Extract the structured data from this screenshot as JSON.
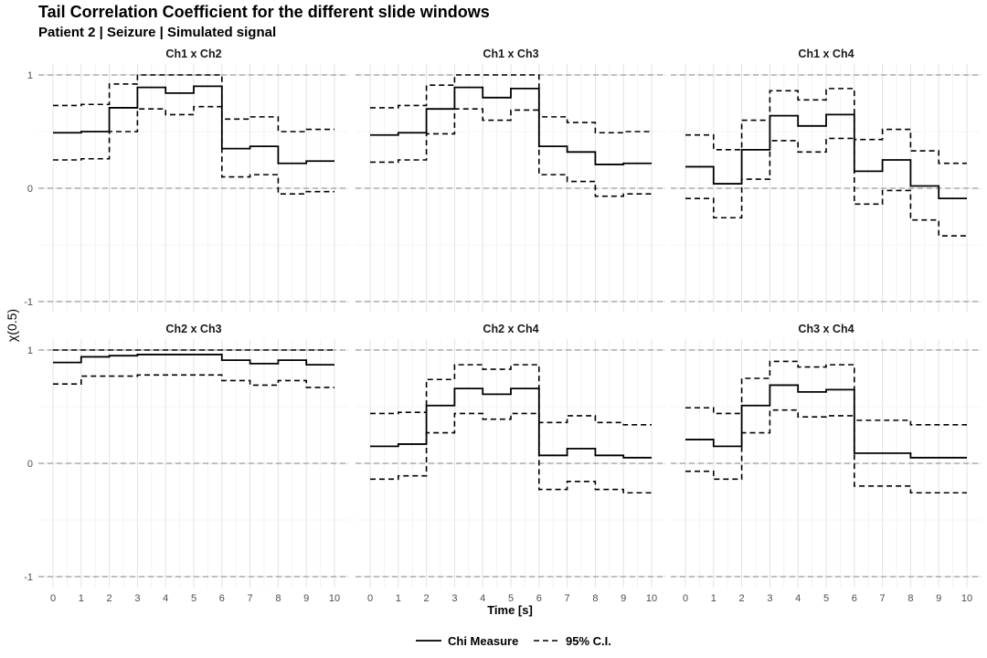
{
  "chart_data": {
    "type": "line",
    "step": "hv",
    "title": "Tail Correlation Coefficient for the different slide windows",
    "subtitle": "Patient 2 | Seizure | Simulated signal",
    "xlabel": "Time [s]",
    "ylabel": "χ(0.5)",
    "xlim": [
      0,
      10
    ],
    "ylim": [
      -1,
      1
    ],
    "x_ticks": [
      0,
      1,
      2,
      3,
      4,
      5,
      6,
      7,
      8,
      9,
      10
    ],
    "x_tick_labels": [
      "0",
      "1",
      "2",
      "3",
      "4",
      "5",
      "6",
      "7",
      "8",
      "9",
      "10"
    ],
    "y_ticks": [
      -1,
      0,
      1
    ],
    "y_tick_labels": [
      "-1",
      "0",
      "1"
    ],
    "reference_lines": [
      -1,
      0,
      1
    ],
    "grid": true,
    "legend": {
      "position": "bottom",
      "entries": [
        {
          "label": "Chi Measure",
          "style": "solid"
        },
        {
          "label": "95% C.I.",
          "style": "dashed"
        }
      ]
    },
    "x": [
      0,
      1,
      2,
      3,
      4,
      5,
      6,
      7,
      8,
      9,
      10
    ],
    "panels": [
      {
        "label": "Ch1 x Ch2",
        "chi": [
          0.49,
          0.5,
          0.71,
          0.89,
          0.84,
          0.9,
          0.35,
          0.37,
          0.22,
          0.24,
          0.24
        ],
        "lower": [
          0.25,
          0.26,
          0.5,
          0.7,
          0.65,
          0.72,
          0.1,
          0.12,
          -0.05,
          -0.03,
          -0.03
        ],
        "upper": [
          0.73,
          0.74,
          0.92,
          1.0,
          1.0,
          1.0,
          0.61,
          0.63,
          0.5,
          0.52,
          0.52
        ]
      },
      {
        "label": "Ch1 x Ch3",
        "chi": [
          0.47,
          0.49,
          0.7,
          0.89,
          0.8,
          0.88,
          0.37,
          0.32,
          0.21,
          0.22,
          0.22
        ],
        "lower": [
          0.23,
          0.25,
          0.48,
          0.7,
          0.6,
          0.69,
          0.12,
          0.06,
          -0.07,
          -0.05,
          -0.05
        ],
        "upper": [
          0.71,
          0.73,
          0.91,
          1.0,
          1.0,
          1.0,
          0.63,
          0.58,
          0.49,
          0.5,
          0.5
        ]
      },
      {
        "label": "Ch1 x Ch4",
        "chi": [
          0.19,
          0.04,
          0.34,
          0.64,
          0.55,
          0.65,
          0.15,
          0.25,
          0.02,
          -0.09,
          -0.09
        ],
        "lower": [
          -0.09,
          -0.26,
          0.08,
          0.42,
          0.32,
          0.44,
          -0.14,
          -0.02,
          -0.28,
          -0.42,
          -0.42
        ],
        "upper": [
          0.47,
          0.34,
          0.6,
          0.86,
          0.78,
          0.88,
          0.43,
          0.52,
          0.33,
          0.22,
          0.22
        ]
      },
      {
        "label": "Ch2 x Ch3",
        "chi": [
          0.89,
          0.94,
          0.95,
          0.96,
          0.96,
          0.96,
          0.91,
          0.88,
          0.91,
          0.87,
          0.87
        ],
        "lower": [
          0.7,
          0.77,
          0.77,
          0.78,
          0.78,
          0.78,
          0.73,
          0.69,
          0.73,
          0.67,
          0.67
        ],
        "upper": [
          1.0,
          1.0,
          1.0,
          1.0,
          1.0,
          1.0,
          1.0,
          1.0,
          1.0,
          1.0,
          1.0
        ]
      },
      {
        "label": "Ch2 x Ch4",
        "chi": [
          0.15,
          0.17,
          0.51,
          0.66,
          0.61,
          0.66,
          0.07,
          0.13,
          0.07,
          0.05,
          0.05
        ],
        "lower": [
          -0.14,
          -0.11,
          0.27,
          0.44,
          0.39,
          0.44,
          -0.23,
          -0.16,
          -0.23,
          -0.26,
          -0.26
        ],
        "upper": [
          0.44,
          0.45,
          0.74,
          0.87,
          0.83,
          0.87,
          0.36,
          0.42,
          0.36,
          0.34,
          0.34
        ]
      },
      {
        "label": "Ch3 x Ch4",
        "chi": [
          0.21,
          0.15,
          0.51,
          0.69,
          0.63,
          0.65,
          0.09,
          0.09,
          0.05,
          0.05,
          0.05
        ],
        "lower": [
          -0.07,
          -0.14,
          0.27,
          0.47,
          0.41,
          0.42,
          -0.2,
          -0.2,
          -0.26,
          -0.26,
          -0.26
        ],
        "upper": [
          0.49,
          0.44,
          0.75,
          0.9,
          0.85,
          0.87,
          0.38,
          0.38,
          0.34,
          0.34,
          0.34
        ]
      }
    ]
  }
}
